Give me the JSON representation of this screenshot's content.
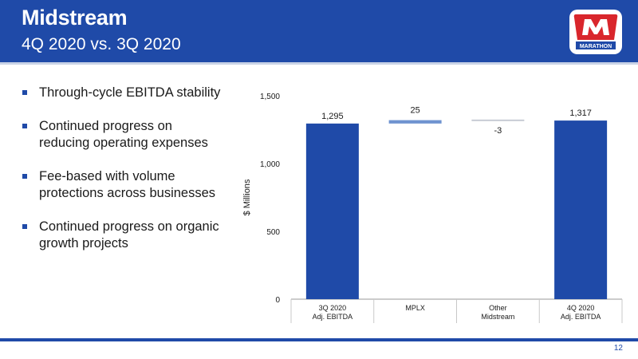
{
  "header": {
    "title": "Midstream",
    "subtitle": "4Q 2020 vs. 3Q 2020",
    "logo_text": "MARATHON"
  },
  "bullets": [
    "Through-cycle EBITDA stability",
    "Continued progress on reducing operating expenses",
    "Fee-based with volume protections across businesses",
    "Continued progress on organic growth projects"
  ],
  "colors": {
    "brand_blue": "#1f4aa8",
    "light_blue": "#6f93d0",
    "neutral_bar": "#c7ccd4",
    "logo_red": "#d9262c"
  },
  "chart_data": {
    "type": "waterfall",
    "ylabel": "$ Millions",
    "ylim": [
      0,
      1500
    ],
    "yticks": [
      0,
      500,
      1000,
      1500
    ],
    "ytick_labels": [
      "0",
      "500",
      "1,000",
      "1,500"
    ],
    "categories": [
      [
        "3Q 2020",
        "Adj. EBITDA"
      ],
      [
        "MPLX"
      ],
      [
        "Other",
        "Midstream"
      ],
      [
        "4Q 2020",
        "Adj. EBITDA"
      ]
    ],
    "bars": [
      {
        "kind": "total",
        "start": 0,
        "end": 1295,
        "label": "1,295"
      },
      {
        "kind": "delta",
        "start": 1295,
        "end": 1320,
        "label": "25"
      },
      {
        "kind": "delta",
        "start": 1320,
        "end": 1317,
        "label": "-3"
      },
      {
        "kind": "total",
        "start": 0,
        "end": 1317,
        "label": "1,317"
      }
    ]
  },
  "footer": {
    "page_number": "12"
  }
}
